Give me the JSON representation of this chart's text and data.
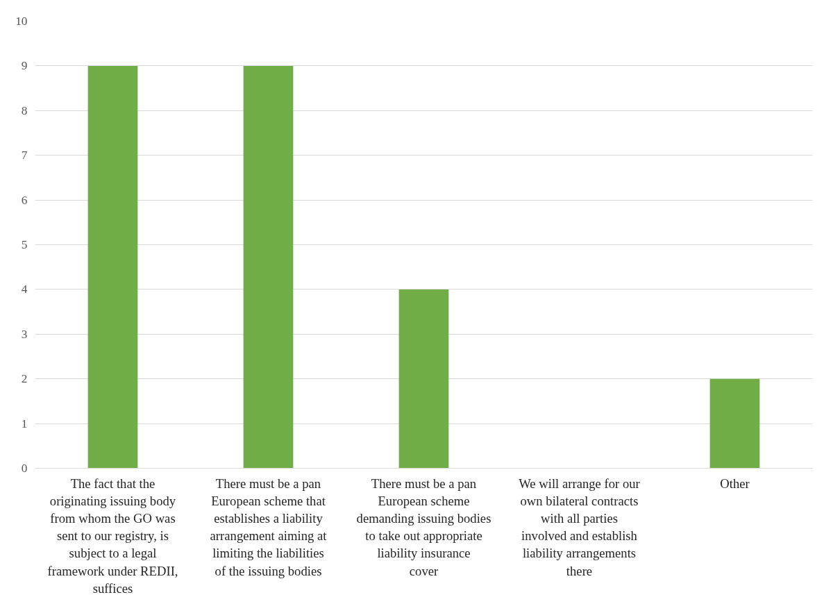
{
  "chart_data": {
    "type": "bar",
    "categories": [
      "The fact that the originating issuing body from whom the GO was sent to our registry, is subject to a legal framework under REDII, suffices",
      "There must be a pan European scheme that establishes a liability arrangement aiming at limiting the liabilities of the issuing bodies",
      "There must be a pan European scheme demanding issuing bodies to take out appropriate liability insurance cover",
      "We will arrange for our own bilateral contracts with all parties involved and establish liability arrangements there",
      "Other"
    ],
    "values": [
      9,
      9,
      4,
      0,
      2
    ],
    "color": "#70ad47",
    "ylim": [
      0,
      10
    ],
    "yticks": [
      0,
      1,
      2,
      3,
      4,
      5,
      6,
      7,
      8,
      9,
      10
    ],
    "grid": "y"
  }
}
